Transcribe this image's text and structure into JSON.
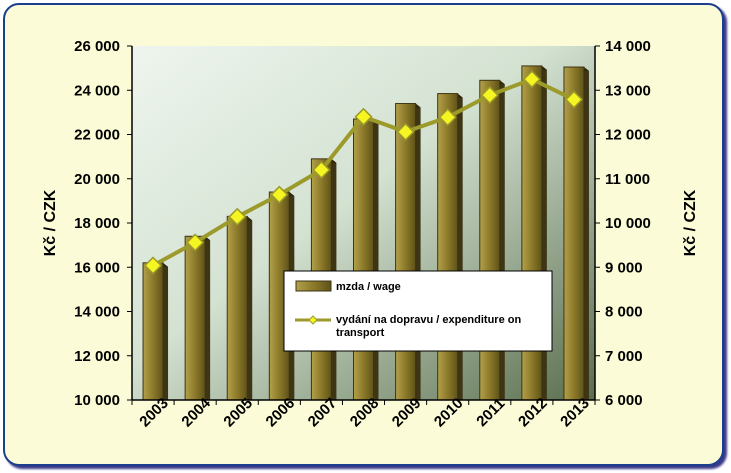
{
  "chart_data": {
    "type": "bar",
    "categories": [
      "2003",
      "2004",
      "2005",
      "2006",
      "2007",
      "2008",
      "2009",
      "2010",
      "2011",
      "2012",
      "2013"
    ],
    "series": [
      {
        "name": "mzda / wage",
        "kind": "bar",
        "axis": "left",
        "values": [
          16200,
          17400,
          18300,
          19400,
          20900,
          22700,
          23400,
          23850,
          24450,
          25100,
          25050
        ]
      },
      {
        "name": "vydání na dopravu / expenditure on transport",
        "kind": "line",
        "axis": "right",
        "values": [
          9040,
          9560,
          10140,
          10640,
          11200,
          12400,
          12060,
          12390,
          12890,
          13250,
          12790
        ]
      }
    ],
    "ylabel": "Kč / CZK",
    "y2label": "Kč / CZK",
    "ylim": [
      10000,
      26000
    ],
    "y2lim": [
      6000,
      14000
    ],
    "yticks": [
      "10 000",
      "12 000",
      "14 000",
      "16 000",
      "18 000",
      "20 000",
      "22 000",
      "24 000",
      "26 000"
    ],
    "y2ticks": [
      "6 000",
      "7 000",
      "8 000",
      "9 000",
      "10 000",
      "11 000",
      "12 000",
      "13 000",
      "14 000"
    ],
    "grid": false,
    "legend": "center",
    "colors": {
      "bar": "#8c7a2a",
      "bar_dark": "#3d3514",
      "line": "#9c9a2a",
      "marker": "#f5f522",
      "frame_background": "#fbfcd7",
      "plot_gradient_light": "#eef5ee",
      "plot_gradient_dark": "#5a6e4e"
    }
  }
}
